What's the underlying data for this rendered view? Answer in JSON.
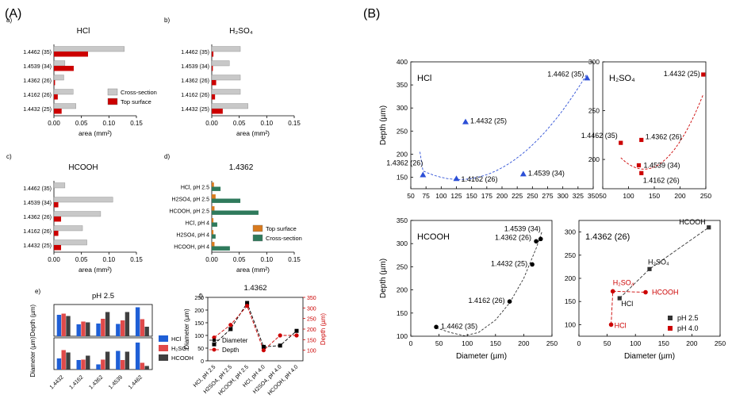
{
  "panel_labels": {
    "A": "(A)",
    "B": "(B)"
  },
  "colors": {
    "grey": "#c8c8c8",
    "red": "#cc0000",
    "blue": "#2c4fd6",
    "orange": "#d87a1e",
    "green": "#2f7a5c",
    "dark": "#333333",
    "hcl_bar": "#1f5fd6",
    "h2so4_bar": "#e04a4a",
    "hcooh_bar": "#404040"
  },
  "chart_data": [
    {
      "id": "Aa",
      "letter": "a)",
      "type": "bar",
      "title": "HCl",
      "categories": [
        "1.4462 (35)",
        "1.4539 (34)",
        "1.4362 (26)",
        "1.4162 (26)",
        "1.4432 (25)"
      ],
      "series": [
        {
          "name": "Cross-section",
          "values": [
            0.128,
            0.02,
            0.018,
            0.035,
            0.04
          ]
        },
        {
          "name": "Top surface",
          "values": [
            0.062,
            0.036,
            0.002,
            0.007,
            0.014
          ]
        }
      ],
      "xlabel": "area (mm²)",
      "xlim": [
        0,
        0.15
      ],
      "xticks": [
        "0.00",
        "0.05",
        "0.10",
        "0.15"
      ],
      "legend": "bottom-right"
    },
    {
      "id": "Ab",
      "letter": "b)",
      "type": "bar",
      "title": "H₂SO₄",
      "categories": [
        "1.4462 (35)",
        "1.4539 (34)",
        "1.4362 (26)",
        "1.4162 (26)",
        "1.4432 (25)"
      ],
      "series": [
        {
          "name": "Cross-section",
          "values": [
            0.052,
            0.032,
            0.052,
            0.052,
            0.066
          ]
        },
        {
          "name": "Top surface",
          "values": [
            0.003,
            0.002,
            0.008,
            0.006,
            0.02
          ]
        }
      ],
      "xlabel": "area (mm²)",
      "xlim": [
        0,
        0.15
      ],
      "xticks": [
        "0.00",
        "0.05",
        "0.10",
        "0.15"
      ]
    },
    {
      "id": "Ac",
      "letter": "c)",
      "type": "bar",
      "title": "HCOOH",
      "categories": [
        "1.4462 (35)",
        "1.4539 (34)",
        "1.4362 (26)",
        "1.4162 (26)",
        "1.4432 (25)"
      ],
      "series": [
        {
          "name": "Cross-section",
          "values": [
            0.02,
            0.107,
            0.085,
            0.052,
            0.06
          ]
        },
        {
          "name": "Top surface",
          "values": [
            0.0,
            0.008,
            0.013,
            0.008,
            0.013
          ]
        }
      ],
      "xlabel": "area (mm²)",
      "xlim": [
        0,
        0.15
      ],
      "xticks": [
        "0.00",
        "0.05",
        "0.10",
        "0.15"
      ]
    },
    {
      "id": "Ad",
      "letter": "d)",
      "type": "bar",
      "title": "1.4362",
      "categories": [
        "HCl, pH 2.5",
        "H2SO4, pH 2.5",
        "HCOOH, pH 2.5",
        "HCl, pH 4",
        "H2SO4, pH 4",
        "HCOOH, pH 4"
      ],
      "series": [
        {
          "name": "Top surface",
          "values": [
            0.004,
            0.007,
            0.005,
            0.003,
            0.003,
            0.005
          ]
        },
        {
          "name": "Cross-section",
          "values": [
            0.016,
            0.052,
            0.085,
            0.01,
            0.007,
            0.033
          ]
        }
      ],
      "xlabel": "area (mm²)",
      "xlim": [
        0,
        0.15
      ],
      "xticks": [
        "0.00",
        "0.05",
        "0.10",
        "0.15"
      ],
      "legend": "right"
    },
    {
      "id": "Ae",
      "letter": "e)",
      "type": "bar",
      "title": "pH 2.5",
      "categories": [
        "1.4432",
        "1.4162",
        "1.4362",
        "1.4539",
        "1.4462"
      ],
      "series": [
        {
          "name": "HCl",
          "depth": [
            270,
            150,
            160,
            155,
            365
          ],
          "diameter": [
            140,
            120,
            65,
            235,
            340
          ]
        },
        {
          "name": "H₂SO₄",
          "depth": [
            285,
            185,
            220,
            200,
            215
          ],
          "diameter": [
            245,
            125,
            125,
            120,
            85
          ]
        },
        {
          "name": "HCOOH",
          "depth": [
            255,
            175,
            305,
            305,
            120
          ],
          "diameter": [
            215,
            175,
            225,
            225,
            45
          ]
        }
      ],
      "ylabel_top": "Depth (µm)",
      "ylabel_bottom": "Diameter (µm)",
      "legend": "right"
    },
    {
      "id": "Af",
      "letter": "f)",
      "type": "line",
      "title": "1.4362",
      "categories": [
        "HCl, pH 2.5",
        "H2SO4, pH 2.5",
        "HCOOH, pH 2.5",
        "HCl, pH 4.0",
        "H2SO4, pH 4.0",
        "HCOOH, pH 4.0"
      ],
      "series": [
        {
          "name": "Diameter",
          "values": [
            65,
            125,
            228,
            55,
            60,
            118
          ]
        },
        {
          "name": "Depth",
          "values": [
            160,
            220,
            310,
            100,
            170,
            170
          ]
        }
      ],
      "ylabel": "Diameter (µm)",
      "y2label": "Depth (µm)",
      "ylim": [
        0,
        250
      ],
      "y2lim": [
        50,
        350
      ],
      "yticks": [
        "0",
        "50",
        "100",
        "150",
        "200",
        "250"
      ],
      "y2ticks": [
        "100",
        "150",
        "200",
        "250",
        "300",
        "350"
      ],
      "legend": "bottom-left"
    },
    {
      "id": "B1",
      "type": "scatter",
      "title": "HCl",
      "xlabel": "",
      "ylabel": "Depth (µm)",
      "xlim": [
        50,
        350
      ],
      "ylim": [
        125,
        400
      ],
      "xticks": [
        "50",
        "75",
        "100",
        "125",
        "150",
        "175",
        "200",
        "225",
        "250",
        "275",
        "300",
        "325",
        "350"
      ],
      "yticks": [
        "150",
        "200",
        "250",
        "300",
        "350",
        "400"
      ],
      "points": [
        {
          "x": 70,
          "y": 155,
          "label": "1.4362 (26)"
        },
        {
          "x": 125,
          "y": 147,
          "label": "1.4162 (26)"
        },
        {
          "x": 140,
          "y": 270,
          "label": "1.4432 (25)"
        },
        {
          "x": 235,
          "y": 157,
          "label": "1.4539 (34)"
        },
        {
          "x": 340,
          "y": 365,
          "label": "1.4462 (35)"
        }
      ]
    },
    {
      "id": "B2",
      "type": "scatter",
      "title": "H₂SO₄",
      "xlim": [
        50,
        250
      ],
      "ylim": [
        170,
        300
      ],
      "xticks": [
        "50",
        "100",
        "150",
        "200",
        "250"
      ],
      "yticks": [
        "200",
        "250",
        "300"
      ],
      "points": [
        {
          "x": 85,
          "y": 217,
          "label": "1.4462 (35)"
        },
        {
          "x": 120,
          "y": 194,
          "label": "1.4539 (34)"
        },
        {
          "x": 125,
          "y": 186,
          "label": "1.4162 (26)"
        },
        {
          "x": 125,
          "y": 220,
          "label": "1.4362 (26)"
        },
        {
          "x": 245,
          "y": 287,
          "label": "1.4432 (25)"
        }
      ]
    },
    {
      "id": "B3",
      "type": "scatter",
      "title": "HCOOH",
      "xlabel": "Diameter (µm)",
      "ylabel": "Depth (µm)",
      "xlim": [
        0,
        250
      ],
      "ylim": [
        100,
        350
      ],
      "xticks": [
        "0",
        "50",
        "100",
        "150",
        "200",
        "250"
      ],
      "yticks": [
        "100",
        "150",
        "200",
        "250",
        "300",
        "350"
      ],
      "points": [
        {
          "x": 45,
          "y": 120,
          "label": "1.4462 (35)"
        },
        {
          "x": 175,
          "y": 175,
          "label": "1.4162 (26)"
        },
        {
          "x": 215,
          "y": 255,
          "label": "1.4432 (25)"
        },
        {
          "x": 222,
          "y": 305,
          "label": "1.4362 (26)"
        },
        {
          "x": 230,
          "y": 310,
          "label": "1.4539 (34)"
        }
      ]
    },
    {
      "id": "B4",
      "type": "scatter",
      "title": "1.4362 (26)",
      "xlabel": "Diameter (µm)",
      "xlim": [
        0,
        250
      ],
      "ylim": [
        75,
        325
      ],
      "xticks": [
        "0",
        "50",
        "100",
        "150",
        "200",
        "250"
      ],
      "yticks": [
        "100",
        "150",
        "200",
        "250",
        "300"
      ],
      "series": [
        {
          "name": "pH 2.5",
          "points": [
            {
              "x": 72,
              "y": 157,
              "label": "HCl"
            },
            {
              "x": 125,
              "y": 220,
              "label": "H₂SO₄"
            },
            {
              "x": 230,
              "y": 310,
              "label": "HCOOH"
            }
          ]
        },
        {
          "name": "pH 4.0",
          "points": [
            {
              "x": 57,
              "y": 100,
              "label": "HCl"
            },
            {
              "x": 60,
              "y": 172,
              "label": "H₂SO₄"
            },
            {
              "x": 118,
              "y": 170,
              "label": "HCOOH"
            }
          ]
        }
      ],
      "legend": "bottom-right"
    }
  ]
}
